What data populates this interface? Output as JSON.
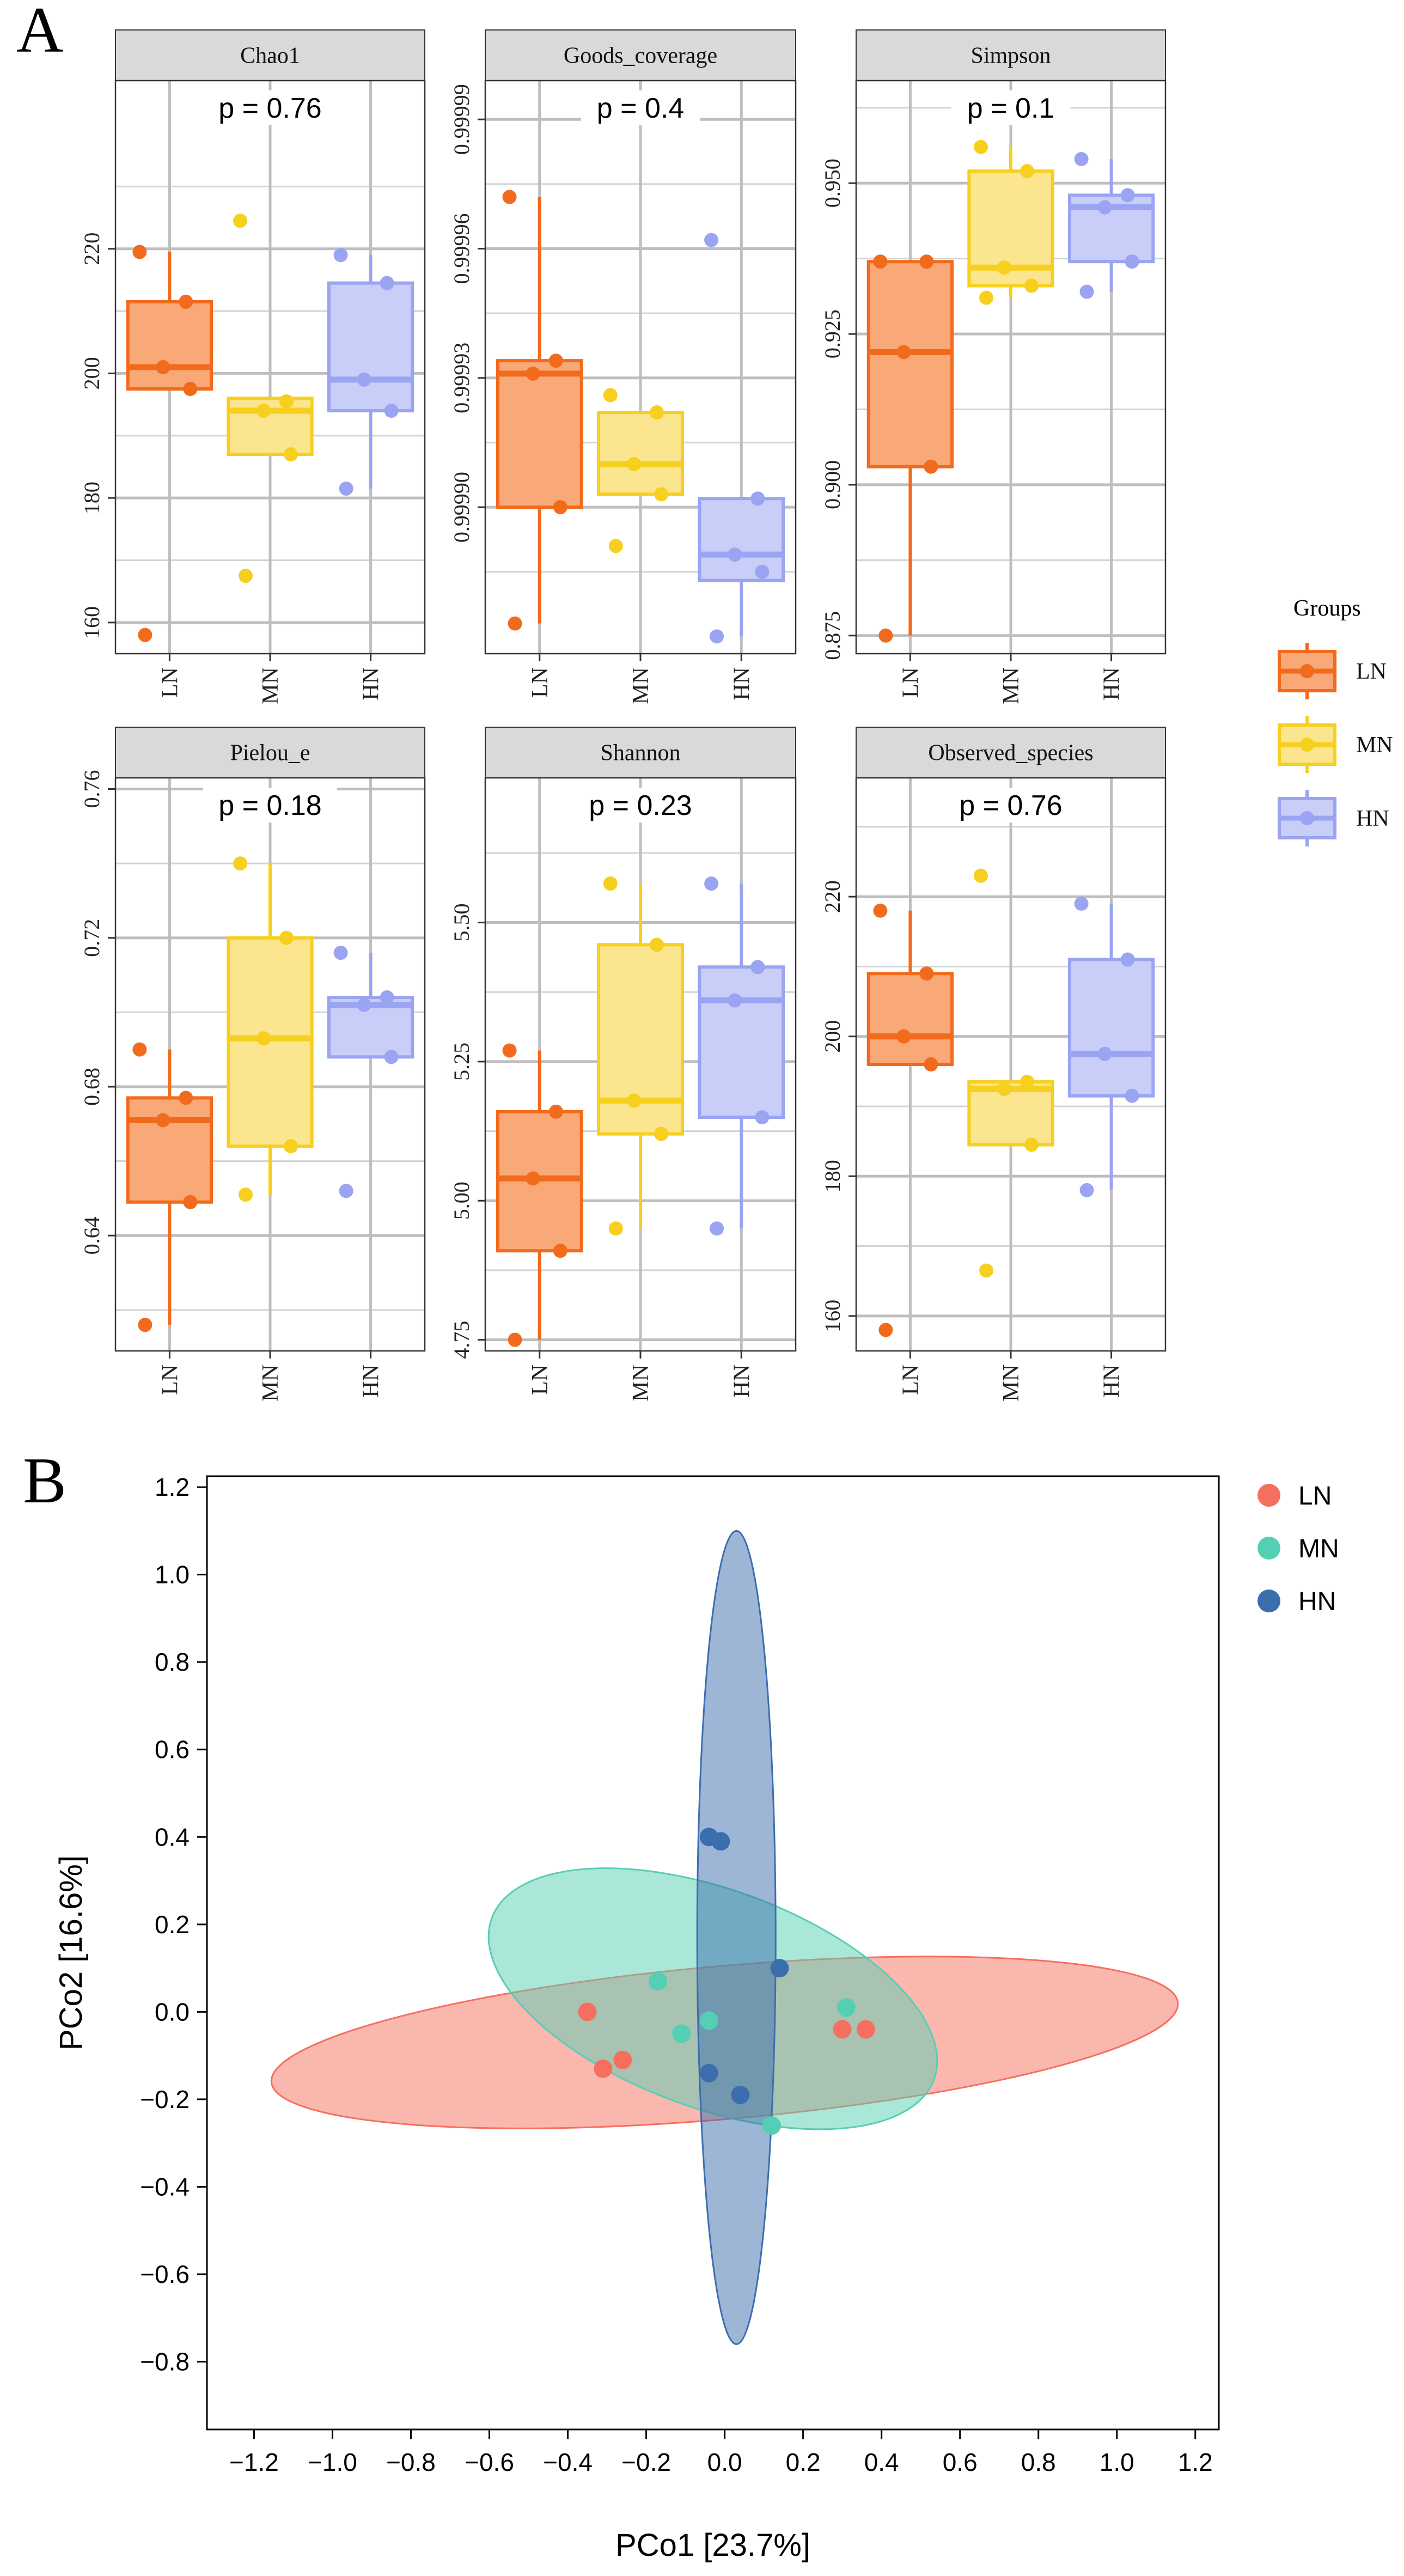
{
  "panel_labels": {
    "a": "A",
    "b": "B"
  },
  "colors": {
    "LN": "#F26B1D",
    "LN_fill": "#F9A877",
    "MN": "#F7CF1E",
    "MN_fill": "#FBE58E",
    "HN": "#9AA4F2",
    "HN_fill": "#C8CEF8",
    "grid": "#BEBEBE",
    "strip": "#D9D9D9",
    "pcoa_LN": "#F66F5E",
    "pcoa_MN": "#55CFB4",
    "pcoa_HN": "#3C6EAE"
  },
  "legend_a": {
    "title": "Groups",
    "items": [
      {
        "key": "LN",
        "label": "LN"
      },
      {
        "key": "MN",
        "label": "MN"
      },
      {
        "key": "HN",
        "label": "HN"
      }
    ]
  },
  "legend_b": {
    "items": [
      {
        "key": "LN",
        "label": "LN"
      },
      {
        "key": "MN",
        "label": "MN"
      },
      {
        "key": "HN",
        "label": "HN"
      }
    ]
  },
  "chart_data": [
    {
      "type": "box",
      "title": "Chao1",
      "pvalue": "p = 0.76",
      "categories": [
        "LN",
        "MN",
        "HN"
      ],
      "ylim": [
        155,
        247
      ],
      "yticks": [
        160,
        180,
        200,
        220
      ],
      "ytick_labels": [
        "160",
        "180",
        "200",
        "220"
      ],
      "boxes": [
        {
          "group": "LN",
          "q1": 197.5,
          "median": 201,
          "q3": 211.5,
          "wlow": 197.5,
          "whigh": 219.5,
          "points": [
            158,
            197.5,
            201,
            211.5,
            219.5
          ]
        },
        {
          "group": "MN",
          "q1": 187,
          "median": 194,
          "q3": 196,
          "wlow": 187,
          "whigh": 196,
          "points": [
            167.5,
            187,
            194,
            195.5,
            224.5
          ]
        },
        {
          "group": "HN",
          "q1": 194,
          "median": 199,
          "q3": 214.5,
          "wlow": 181.5,
          "whigh": 219,
          "points": [
            181.5,
            194,
            199,
            214.5,
            219
          ]
        }
      ]
    },
    {
      "type": "box",
      "title": "Goods_coverage",
      "pvalue": "p = 0.4",
      "categories": [
        "LN",
        "MN",
        "HN"
      ],
      "ylim": [
        0.999866,
        0.999999
      ],
      "yticks": [
        0.9999,
        0.99993,
        0.99996,
        0.99999
      ],
      "ytick_labels": [
        "0.99990",
        "0.99993",
        "0.99996",
        "0.99999"
      ],
      "boxes": [
        {
          "group": "LN",
          "q1": 0.9999,
          "median": 0.999931,
          "q3": 0.999934,
          "wlow": 0.999873,
          "whigh": 0.999972,
          "points": [
            0.999873,
            0.9999,
            0.999931,
            0.999934,
            0.999972
          ]
        },
        {
          "group": "MN",
          "q1": 0.999903,
          "median": 0.99991,
          "q3": 0.999922,
          "wlow": 0.999903,
          "whigh": 0.999922,
          "points": [
            0.999891,
            0.999903,
            0.99991,
            0.999922,
            0.999926
          ]
        },
        {
          "group": "HN",
          "q1": 0.999883,
          "median": 0.999889,
          "q3": 0.999902,
          "wlow": 0.99987,
          "whigh": 0.999902,
          "points": [
            0.99987,
            0.999885,
            0.999889,
            0.999902,
            0.999962
          ]
        }
      ]
    },
    {
      "type": "box",
      "title": "Simpson",
      "pvalue": "p = 0.1",
      "categories": [
        "LN",
        "MN",
        "HN"
      ],
      "ylim": [
        0.872,
        0.967
      ],
      "yticks": [
        0.875,
        0.9,
        0.925,
        0.95
      ],
      "ytick_labels": [
        "0.875",
        "0.900",
        "0.925",
        "0.950"
      ],
      "boxes": [
        {
          "group": "LN",
          "q1": 0.903,
          "median": 0.922,
          "q3": 0.937,
          "wlow": 0.875,
          "whigh": 0.937,
          "points": [
            0.875,
            0.903,
            0.922,
            0.937,
            0.937
          ]
        },
        {
          "group": "MN",
          "q1": 0.933,
          "median": 0.936,
          "q3": 0.952,
          "wlow": 0.931,
          "whigh": 0.956,
          "points": [
            0.931,
            0.933,
            0.936,
            0.952,
            0.956
          ]
        },
        {
          "group": "HN",
          "q1": 0.937,
          "median": 0.946,
          "q3": 0.948,
          "wlow": 0.932,
          "whigh": 0.954,
          "points": [
            0.932,
            0.937,
            0.946,
            0.948,
            0.954
          ]
        }
      ]
    },
    {
      "type": "box",
      "title": "Pielou_e",
      "pvalue": "p = 0.18",
      "categories": [
        "LN",
        "MN",
        "HN"
      ],
      "ylim": [
        0.609,
        0.763
      ],
      "yticks": [
        0.64,
        0.68,
        0.72,
        0.76
      ],
      "ytick_labels": [
        "0.64",
        "0.68",
        "0.72",
        "0.76"
      ],
      "boxes": [
        {
          "group": "LN",
          "q1": 0.649,
          "median": 0.671,
          "q3": 0.677,
          "wlow": 0.616,
          "whigh": 0.69,
          "points": [
            0.616,
            0.649,
            0.671,
            0.677,
            0.69
          ]
        },
        {
          "group": "MN",
          "q1": 0.664,
          "median": 0.693,
          "q3": 0.72,
          "wlow": 0.651,
          "whigh": 0.74,
          "points": [
            0.651,
            0.664,
            0.693,
            0.72,
            0.74
          ]
        },
        {
          "group": "HN",
          "q1": 0.688,
          "median": 0.702,
          "q3": 0.704,
          "wlow": 0.688,
          "whigh": 0.716,
          "points": [
            0.652,
            0.688,
            0.702,
            0.704,
            0.716
          ]
        }
      ]
    },
    {
      "type": "box",
      "title": "Shannon",
      "pvalue": "p = 0.23",
      "categories": [
        "LN",
        "MN",
        "HN"
      ],
      "ylim": [
        4.73,
        5.76
      ],
      "yticks": [
        4.75,
        5.0,
        5.25,
        5.5
      ],
      "ytick_labels": [
        "4.75",
        "5.00",
        "5.25",
        "5.50"
      ],
      "boxes": [
        {
          "group": "LN",
          "q1": 4.91,
          "median": 5.04,
          "q3": 5.16,
          "wlow": 4.75,
          "whigh": 5.27,
          "points": [
            4.75,
            4.91,
            5.04,
            5.16,
            5.27
          ]
        },
        {
          "group": "MN",
          "q1": 5.12,
          "median": 5.18,
          "q3": 5.46,
          "wlow": 4.95,
          "whigh": 5.57,
          "points": [
            4.95,
            5.12,
            5.18,
            5.46,
            5.57
          ]
        },
        {
          "group": "HN",
          "q1": 5.15,
          "median": 5.36,
          "q3": 5.42,
          "wlow": 4.95,
          "whigh": 5.57,
          "points": [
            4.95,
            5.15,
            5.36,
            5.42,
            5.57
          ]
        }
      ]
    },
    {
      "type": "box",
      "title": "Observed_species",
      "pvalue": "p = 0.76",
      "categories": [
        "LN",
        "MN",
        "HN"
      ],
      "ylim": [
        155,
        237
      ],
      "yticks": [
        160,
        180,
        200,
        220
      ],
      "ytick_labels": [
        "160",
        "180",
        "200",
        "220"
      ],
      "boxes": [
        {
          "group": "LN",
          "q1": 196,
          "median": 200,
          "q3": 209,
          "wlow": 196,
          "whigh": 218,
          "points": [
            158,
            196,
            200,
            209,
            218
          ]
        },
        {
          "group": "MN",
          "q1": 184.5,
          "median": 192.5,
          "q3": 193.5,
          "wlow": 184.5,
          "whigh": 193.5,
          "points": [
            166.5,
            184.5,
            192.5,
            193.5,
            223
          ]
        },
        {
          "group": "HN",
          "q1": 191.5,
          "median": 197.5,
          "q3": 211,
          "wlow": 178,
          "whigh": 219,
          "points": [
            178,
            191.5,
            197.5,
            211,
            219
          ]
        }
      ]
    },
    {
      "type": "scatter",
      "title": "",
      "xlabel": "PCo1 [23.7%]",
      "ylabel": "PCo2 [16.6%]",
      "xlim": [
        -1.32,
        1.26
      ],
      "ylim": [
        -0.955,
        1.225
      ],
      "xticks": [
        -1.2,
        -1.0,
        -0.8,
        -0.6,
        -0.4,
        -0.2,
        0.0,
        0.2,
        0.4,
        0.6,
        0.8,
        1.0,
        1.2
      ],
      "xtick_labels": [
        "−1.2",
        "−1.0",
        "−0.8",
        "−0.6",
        "−0.4",
        "−0.2",
        "0.0",
        "0.2",
        "0.4",
        "0.6",
        "0.8",
        "1.0",
        "1.2"
      ],
      "yticks": [
        -0.8,
        -0.6,
        -0.4,
        -0.2,
        0.0,
        0.2,
        0.4,
        0.6,
        0.8,
        1.0,
        1.2
      ],
      "ytick_labels": [
        "−0.8",
        "−0.6",
        "−0.4",
        "−0.2",
        "0.0",
        "0.2",
        "0.4",
        "0.6",
        "0.8",
        "1.0",
        "1.2"
      ],
      "ellipses": [
        {
          "group": "LN",
          "cx": 0.0,
          "cy": -0.07,
          "rx": 1.16,
          "ry": 0.175,
          "angle_deg": 5
        },
        {
          "group": "MN",
          "cx": -0.03,
          "cy": 0.03,
          "rx": 0.6,
          "ry": 0.25,
          "angle_deg": -20
        },
        {
          "group": "HN",
          "cx": 0.03,
          "cy": 0.17,
          "rx": 0.1,
          "ry": 0.93,
          "angle_deg": 0
        }
      ],
      "series": [
        {
          "name": "LN",
          "points": [
            [
              -0.35,
              0.0
            ],
            [
              -0.31,
              -0.13
            ],
            [
              -0.26,
              -0.11
            ],
            [
              0.3,
              -0.04
            ],
            [
              0.36,
              -0.04
            ]
          ]
        },
        {
          "name": "MN",
          "points": [
            [
              -0.17,
              0.07
            ],
            [
              -0.11,
              -0.05
            ],
            [
              -0.04,
              -0.02
            ],
            [
              0.31,
              0.01
            ],
            [
              0.12,
              -0.26
            ]
          ]
        },
        {
          "name": "HN",
          "points": [
            [
              -0.04,
              0.4
            ],
            [
              -0.01,
              0.39
            ],
            [
              0.14,
              0.1
            ],
            [
              -0.04,
              -0.14
            ],
            [
              0.04,
              -0.19
            ]
          ]
        }
      ]
    }
  ]
}
